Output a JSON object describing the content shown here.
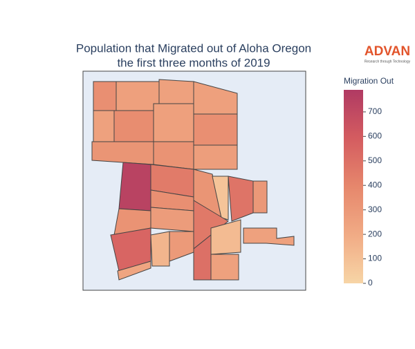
{
  "chart_data": {
    "type": "choropleth",
    "title_lines": [
      "Population that Migrated out of Aloha Oregon",
      "the first three months of 2019"
    ],
    "logo": {
      "name": "ADVAN",
      "tagline": "Research through Technology"
    },
    "colorbar_title": "Migration Out",
    "zlim": [
      0,
      790
    ],
    "zticks": [
      0,
      100,
      200,
      300,
      400,
      500,
      600,
      700
    ],
    "colorscale": [
      "#f7d5a6",
      "#f1ab85",
      "#e6876c",
      "#d45c60",
      "#b03a63"
    ],
    "background": "#e5ecf6",
    "values": [
      350,
      260,
      250,
      260,
      250,
      360,
      260,
      350,
      320,
      330,
      270,
      740,
      450,
      320,
      80,
      480,
      300,
      350,
      280,
      330,
      460,
      550,
      150,
      290,
      500,
      120,
      250,
      250,
      230
    ]
  }
}
